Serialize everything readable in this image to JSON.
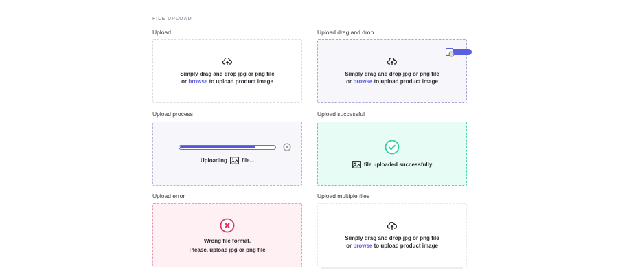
{
  "section_title": "FILE UPLOAD",
  "upload": {
    "label": "Upload",
    "line1": "Simply drag and drop jpg or png file",
    "or": "or ",
    "browse": "browse",
    "line2_rest": " to upload product image"
  },
  "drag": {
    "label": "Upload drag and drop",
    "line1": "Simply drag and drop jpg or png file",
    "or": "or ",
    "browse": "browse",
    "line2_rest": " to upload product image"
  },
  "process": {
    "label": "Upload process",
    "uploading": "Uploading",
    "file": "file...",
    "progress_percent": 80
  },
  "success": {
    "label": "Upload successful",
    "text": "file uploaded successfully"
  },
  "error": {
    "label": "Upload error",
    "line1": "Wrong file format.",
    "line2": "Please, upload jpg or png file"
  },
  "multiple": {
    "label": "Upload multiple files",
    "line1": "Simply drag and drop jpg or png file",
    "or": "or ",
    "browse": "browse",
    "line2_rest": " to upload product image"
  },
  "colors": {
    "accent": "#5b5ce2",
    "success": "#2fcf9f",
    "error": "#e0335f"
  }
}
